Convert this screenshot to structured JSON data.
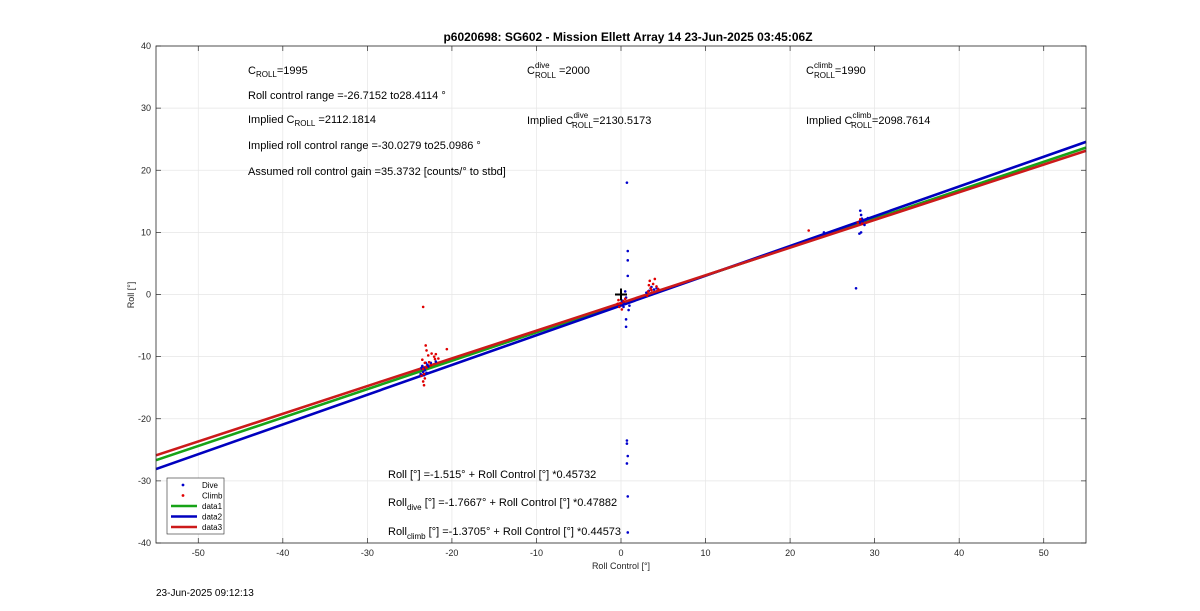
{
  "footer": {
    "timestamp": "23-Jun-2025 09:12:13"
  },
  "annotations": {
    "c_roll": {
      "base": "C",
      "sub": "ROLL",
      "value": "=1995"
    },
    "c_roll_dive": {
      "base": "C",
      "sup": "dive",
      "sub": "ROLL",
      "value": " =2000"
    },
    "c_roll_climb": {
      "base": "C",
      "sup": "climb",
      "sub": "ROLL",
      "value": "=1990"
    },
    "roll_range": "Roll control range =-26.7152 to28.4114 °",
    "implied_c_roll": {
      "prefix": "Implied C",
      "sub": "ROLL",
      "value": " =2112.1814"
    },
    "implied_c_roll_dive": {
      "prefix": "Implied C",
      "sup": "dive",
      "sub": "ROLL",
      "value": "=2130.5173"
    },
    "implied_c_roll_climb": {
      "prefix": "Implied C",
      "sup": "climb",
      "sub": "ROLL",
      "value": "=2098.7614"
    },
    "implied_range": "Implied roll control range =-30.0279 to25.0986 °",
    "gain": "Assumed roll control gain =35.3732 [counts/° to stbd]",
    "eq_all": "Roll [°] =-1.515° + Roll Control [°] *0.45732",
    "eq_dive": {
      "prefix": "Roll",
      "sub": "dive",
      "rest": " [°] =-1.7667° + Roll Control [°] *0.47882"
    },
    "eq_climb": {
      "prefix": "Roll",
      "sub": "climb",
      "rest": " [°] =-1.3705° + Roll Control [°] *0.44573"
    }
  },
  "chart_data": {
    "type": "scatter",
    "title": "p6020698: SG602 - Mission Ellett Array 14 23-Jun-2025 03:45:06Z",
    "xlabel": "Roll Control [°]",
    "ylabel": "Roll [°]",
    "xlim": [
      -55,
      55
    ],
    "ylim": [
      -40,
      40
    ],
    "xticks": [
      -50,
      -40,
      -30,
      -20,
      -10,
      0,
      10,
      20,
      30,
      40,
      50
    ],
    "yticks": [
      -40,
      -30,
      -20,
      -10,
      0,
      10,
      20,
      30,
      40
    ],
    "grid": true,
    "legend_position": "bottom-left",
    "marker_origin": [
      0,
      0
    ],
    "series": [
      {
        "name": "Dive",
        "kind": "points",
        "color": "#0000cc",
        "points": [
          [
            -23.5,
            -11.5
          ],
          [
            -23.5,
            -12
          ],
          [
            -23.4,
            -12.5
          ],
          [
            -23.3,
            -13
          ],
          [
            -23.2,
            -12.2
          ],
          [
            -23.6,
            -11.8
          ],
          [
            -23.1,
            -11
          ],
          [
            -22.9,
            -11.3
          ],
          [
            -23.7,
            -12.8
          ],
          [
            -23.0,
            -12.6
          ],
          [
            -22.8,
            -11.6
          ],
          [
            -23.3,
            -11.9
          ],
          [
            -22.5,
            -11.0
          ],
          [
            -21.9,
            -10.8
          ],
          [
            0.2,
            -1.0
          ],
          [
            0.4,
            -1.5
          ],
          [
            0.6,
            -0.5
          ],
          [
            0.5,
            0.5
          ],
          [
            0.8,
            3
          ],
          [
            0.8,
            5.5
          ],
          [
            0.8,
            7
          ],
          [
            0.7,
            18
          ],
          [
            0.6,
            -4
          ],
          [
            0.6,
            -5.2
          ],
          [
            0.7,
            -23.5
          ],
          [
            0.7,
            -24
          ],
          [
            0.8,
            -26
          ],
          [
            0.7,
            -27.2
          ],
          [
            0.8,
            -32.5
          ],
          [
            0.8,
            -38.3
          ],
          [
            0.3,
            -2
          ],
          [
            0.9,
            -2.5
          ],
          [
            0.1,
            -1.2
          ],
          [
            1.0,
            -1.8
          ],
          [
            3.3,
            0.6
          ],
          [
            3.6,
            1.2
          ],
          [
            3.9,
            0.8
          ],
          [
            4.2,
            1.0
          ],
          [
            3.0,
            0.3
          ],
          [
            24,
            10
          ],
          [
            27.8,
            1
          ],
          [
            28.3,
            13.5
          ],
          [
            28.4,
            12.8
          ],
          [
            28.5,
            12.2
          ],
          [
            28.3,
            11.5
          ],
          [
            28.6,
            11.8
          ],
          [
            28.4,
            10
          ],
          [
            28.2,
            9.8
          ],
          [
            28.9,
            12.0
          ],
          [
            29.2,
            12.3
          ],
          [
            28.8,
            11.2
          ]
        ]
      },
      {
        "name": "Climb",
        "kind": "points",
        "color": "#e00000",
        "points": [
          [
            -23.4,
            -2
          ],
          [
            -23.1,
            -8.2
          ],
          [
            -23.0,
            -9
          ],
          [
            -22.8,
            -9.8
          ],
          [
            -23.5,
            -10.5
          ],
          [
            -23.2,
            -11
          ],
          [
            -23.4,
            -12
          ],
          [
            -23.3,
            -12.8
          ],
          [
            -23.2,
            -13.5
          ],
          [
            -23.4,
            -14
          ],
          [
            -23.3,
            -14.6
          ],
          [
            -22.4,
            -9.5
          ],
          [
            -22.1,
            -10
          ],
          [
            -21.9,
            -9.6
          ],
          [
            -21.6,
            -10.3
          ],
          [
            -22.7,
            -10.9
          ],
          [
            -22.5,
            -11.4
          ],
          [
            -20.6,
            -8.8
          ],
          [
            -22.0,
            -10.4
          ],
          [
            -23.6,
            -13.1
          ],
          [
            -23.0,
            -11.8
          ],
          [
            -0.4,
            -1.5
          ],
          [
            -0.2,
            -2.0
          ],
          [
            0.0,
            -1.4
          ],
          [
            0.3,
            -1.1
          ],
          [
            0.1,
            -2.4
          ],
          [
            -0.3,
            -0.9
          ],
          [
            0.5,
            -0.7
          ],
          [
            3.2,
            0.5
          ],
          [
            3.3,
            1.5
          ],
          [
            3.4,
            2.2
          ],
          [
            3.5,
            1.0
          ],
          [
            3.6,
            0.7
          ],
          [
            3.8,
            1.7
          ],
          [
            4.0,
            2.5
          ],
          [
            4.2,
            1.3
          ],
          [
            4.4,
            0.9
          ],
          [
            3.1,
            -0.2
          ],
          [
            22.2,
            10.3
          ],
          [
            28.0,
            11.6
          ],
          [
            28.3,
            12.1
          ],
          [
            28.5,
            11.4
          ]
        ]
      },
      {
        "name": "data1",
        "kind": "line",
        "color": "#17a317",
        "slope": 0.45732,
        "intercept": -1.515
      },
      {
        "name": "data2",
        "kind": "line",
        "color": "#0000bf",
        "slope": 0.47882,
        "intercept": -1.7667
      },
      {
        "name": "data3",
        "kind": "line",
        "color": "#cc1a1a",
        "slope": 0.44573,
        "intercept": -1.3705
      }
    ]
  }
}
